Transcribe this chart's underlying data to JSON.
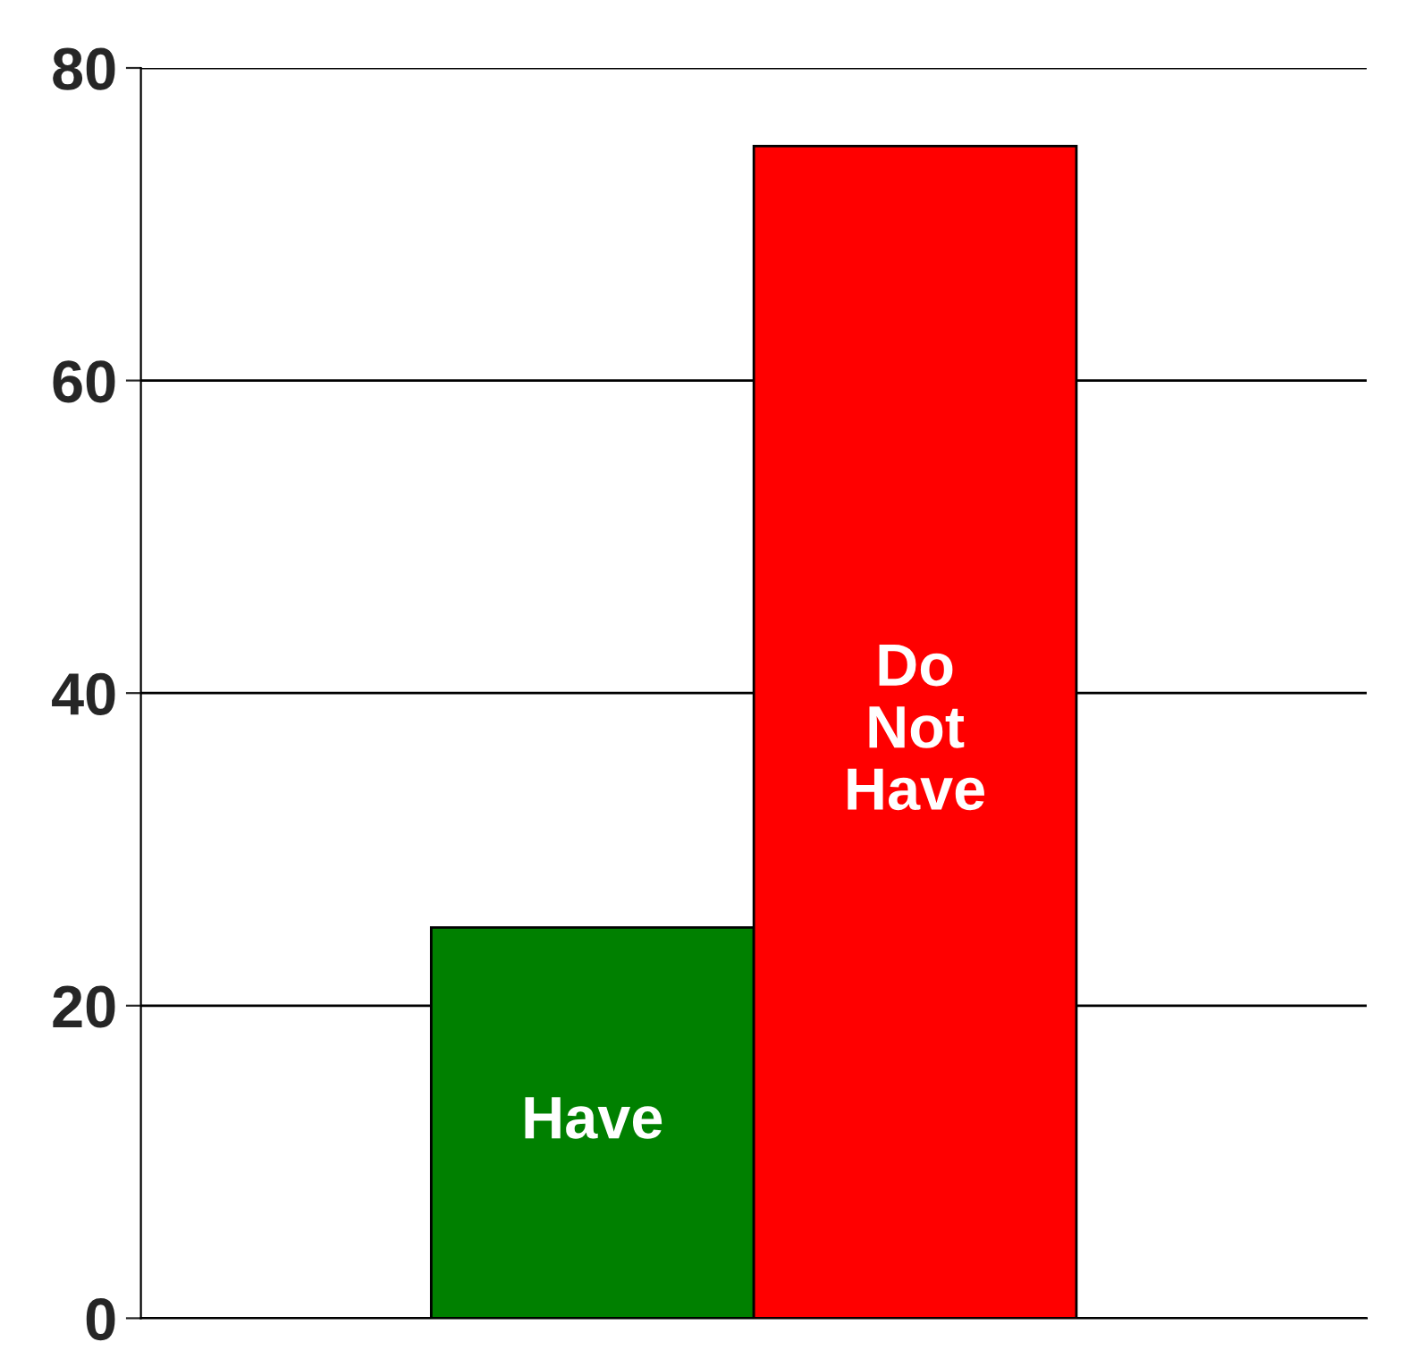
{
  "chart_data": {
    "type": "bar",
    "categories": [
      "Have",
      "Do\nNot\nHave"
    ],
    "values": [
      25,
      75
    ],
    "colors": [
      "#008000",
      "#ff0000"
    ],
    "ylim": [
      0,
      80
    ],
    "yticks": [
      0,
      20,
      40,
      60,
      80
    ],
    "grid": "y"
  }
}
